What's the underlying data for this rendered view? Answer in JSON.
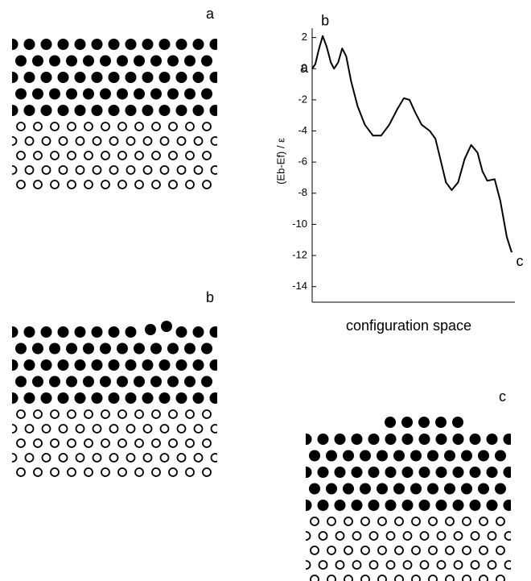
{
  "panels": [
    {
      "label": "a"
    },
    {
      "label": "b"
    },
    {
      "label": "c"
    }
  ],
  "chart_data": {
    "type": "line",
    "y_label": "(Eb-Ef) / ε",
    "x_label": "configuration space",
    "annotations": [
      "a",
      "b",
      "c"
    ],
    "xlim": [
      0,
      250
    ],
    "ylim": [
      -15,
      2.6
    ],
    "yticks": [
      2,
      0,
      -2,
      -4,
      -6,
      -8,
      -10,
      -12,
      -14
    ],
    "x": [
      0,
      4,
      8,
      13,
      18,
      23,
      27,
      32,
      37,
      42,
      48,
      56,
      65,
      75,
      85,
      95,
      105,
      113,
      120,
      127,
      135,
      145,
      152,
      158,
      165,
      172,
      180,
      188,
      196,
      204,
      210,
      216,
      225,
      232,
      240,
      246
    ],
    "series": [
      {
        "color": "#000000",
        "values": [
          0,
          0.3,
          1.2,
          2.1,
          1.4,
          0.4,
          0,
          0.4,
          1.3,
          0.8,
          -0.8,
          -2.4,
          -3.6,
          -4.3,
          -4.3,
          -3.6,
          -2.6,
          -1.9,
          -2.0,
          -2.8,
          -3.6,
          -4.0,
          -4.5,
          -5.8,
          -7.3,
          -7.8,
          -7.3,
          -5.8,
          -4.9,
          -5.4,
          -6.6,
          -7.2,
          -7.1,
          -8.5,
          -10.8,
          -11.8
        ]
      }
    ]
  }
}
